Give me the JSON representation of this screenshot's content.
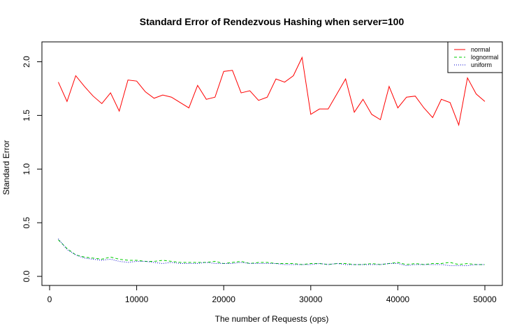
{
  "chart_data": {
    "type": "line",
    "title": "Standard Error of Rendezvous Hashing when server=100",
    "xlabel": "The number of Requests (ops)",
    "ylabel": "Standard Error",
    "xlim": [
      0,
      50000
    ],
    "ylim": [
      0,
      2.0
    ],
    "x_ticks": [
      "0",
      "10000",
      "20000",
      "30000",
      "40000",
      "50000"
    ],
    "y_ticks": [
      "0.0",
      "0.5",
      "1.0",
      "1.5",
      "2.0"
    ],
    "grid": false,
    "legend_position": "top-right",
    "x": [
      1000,
      2000,
      3000,
      4000,
      5000,
      6000,
      7000,
      8000,
      9000,
      10000,
      11000,
      12000,
      13000,
      14000,
      15000,
      16000,
      17000,
      18000,
      19000,
      20000,
      21000,
      22000,
      23000,
      24000,
      25000,
      26000,
      27000,
      28000,
      29000,
      30000,
      31000,
      32000,
      33000,
      34000,
      35000,
      36000,
      37000,
      38000,
      39000,
      40000,
      41000,
      42000,
      43000,
      44000,
      45000,
      46000,
      47000,
      48000,
      49000,
      50000
    ],
    "series": [
      {
        "name": "normal",
        "color": "#ff0000",
        "dash": "solid",
        "values": [
          1.81,
          1.63,
          1.87,
          1.77,
          1.68,
          1.61,
          1.71,
          1.54,
          1.83,
          1.82,
          1.72,
          1.66,
          1.69,
          1.67,
          1.62,
          1.57,
          1.78,
          1.65,
          1.67,
          1.91,
          1.92,
          1.71,
          1.73,
          1.64,
          1.67,
          1.84,
          1.81,
          1.87,
          2.04,
          1.51,
          1.56,
          1.56,
          1.7,
          1.84,
          1.53,
          1.65,
          1.51,
          1.46,
          1.77,
          1.57,
          1.67,
          1.68,
          1.57,
          1.48,
          1.65,
          1.62,
          1.41,
          1.85,
          1.7,
          1.63
        ]
      },
      {
        "name": "lognormal",
        "color": "#00cc00",
        "dash": "dashed",
        "values": [
          0.34,
          0.26,
          0.2,
          0.18,
          0.17,
          0.16,
          0.18,
          0.16,
          0.15,
          0.15,
          0.14,
          0.14,
          0.15,
          0.14,
          0.13,
          0.13,
          0.13,
          0.13,
          0.14,
          0.12,
          0.13,
          0.14,
          0.12,
          0.13,
          0.13,
          0.12,
          0.12,
          0.12,
          0.11,
          0.12,
          0.12,
          0.11,
          0.12,
          0.12,
          0.11,
          0.11,
          0.12,
          0.11,
          0.12,
          0.13,
          0.11,
          0.12,
          0.11,
          0.12,
          0.12,
          0.13,
          0.11,
          0.12,
          0.11,
          0.11
        ]
      },
      {
        "name": "uniform",
        "color": "#0000cc",
        "dash": "dotted",
        "values": [
          0.35,
          0.25,
          0.2,
          0.17,
          0.16,
          0.15,
          0.16,
          0.14,
          0.13,
          0.14,
          0.14,
          0.13,
          0.12,
          0.13,
          0.12,
          0.12,
          0.12,
          0.13,
          0.12,
          0.12,
          0.12,
          0.13,
          0.12,
          0.12,
          0.12,
          0.12,
          0.11,
          0.11,
          0.11,
          0.11,
          0.12,
          0.11,
          0.12,
          0.11,
          0.11,
          0.11,
          0.11,
          0.11,
          0.12,
          0.12,
          0.1,
          0.11,
          0.11,
          0.11,
          0.11,
          0.1,
          0.1,
          0.1,
          0.11,
          0.11
        ]
      }
    ]
  }
}
